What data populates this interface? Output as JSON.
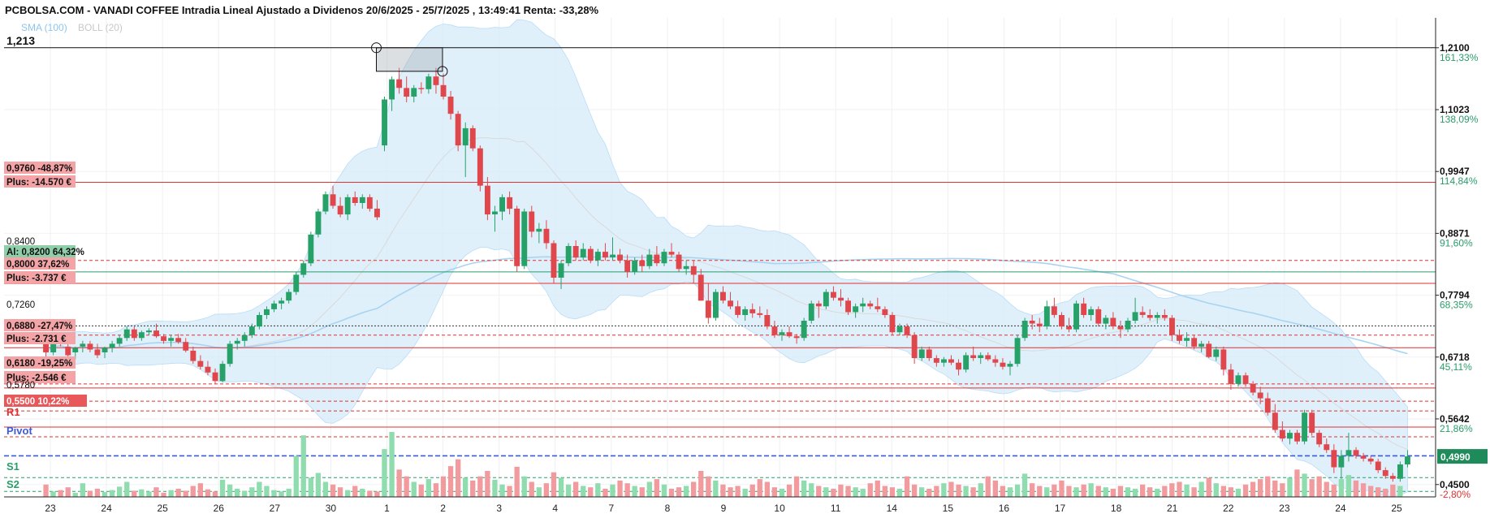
{
  "header": {
    "title": "PCBOLSA.COM - VANADI COFFEE Intradia Lineal Ajustado a Dividenos 20/6/2025 - 25/7/2025 , 13:49:41 Renta: -33,28%",
    "indicator_sma": "SMA (100)",
    "indicator_boll": "BOLL (20)",
    "max_label": "1,213"
  },
  "colors": {
    "up": "#26a269",
    "down": "#e0474c",
    "band_fill": "#d6ebfa",
    "sma_line": "#a8d4f2",
    "pivot": "#3b5bdb",
    "green_axis": "#2a9d6a",
    "red_axis": "#e03131"
  },
  "chart_data": {
    "type": "candlestick",
    "title": "PCBOLSA.COM - VANADI COFFEE Intradia Lineal Ajustado a Dividenos 20/6/2025 - 25/7/2025 , 13:49:41 Renta: -33,28%",
    "x_tick_labels": [
      "23",
      "24",
      "25",
      "26",
      "27",
      "30",
      "1",
      "2",
      "3",
      "4",
      "7",
      "8",
      "9",
      "10",
      "11",
      "14",
      "15",
      "16",
      "17",
      "18",
      "21",
      "22",
      "23",
      "24",
      "25"
    ],
    "ylim": [
      0.4285,
      1.262
    ],
    "right_axis": [
      {
        "price": "1,2100",
        "pct": "161,33%"
      },
      {
        "price": "1,1023",
        "pct": "138,09%"
      },
      {
        "price": "0,9947",
        "pct": "114,84%"
      },
      {
        "price": "0,8871",
        "pct": "91,60%"
      },
      {
        "price": "0,7794",
        "pct": "68,35%"
      },
      {
        "price": "0,6718",
        "pct": "45,11%"
      },
      {
        "price": "0,5642",
        "pct": "21,86%"
      },
      {
        "price": "0,4500",
        "pct": "-2,80%"
      }
    ],
    "last_price": "0,4990",
    "left_labels": [
      {
        "text": "0,9760  -48,87%",
        "style": "red-box"
      },
      {
        "text": "Plus: -14.570 €",
        "style": "red-box"
      },
      {
        "text": "0,8400",
        "style": "plain"
      },
      {
        "text": "Al: 0,8200  64,32%",
        "style": "green-box"
      },
      {
        "text": "0,8000  37,62%",
        "style": "red-box"
      },
      {
        "text": "Plus: -3.737 €",
        "style": "red-box"
      },
      {
        "text": "0,7260",
        "style": "plain"
      },
      {
        "text": "0,6880  -27,47%",
        "style": "red-box"
      },
      {
        "text": "Plus: -2.731 €",
        "style": "red-box"
      },
      {
        "text": "0,6180  -19,25%",
        "style": "red-box"
      },
      {
        "text": "Plus: -2.546 €",
        "style": "red-box"
      },
      {
        "text": "0,5780",
        "style": "plain"
      },
      {
        "text": "0,5500  10,22%",
        "style": "red-solid"
      },
      {
        "text": "R1",
        "style": "red-text"
      },
      {
        "text": "Pivot",
        "style": "blue-text"
      },
      {
        "text": "S1",
        "style": "green-text"
      },
      {
        "text": "S2",
        "style": "green-text"
      }
    ],
    "candles": [
      [
        0.695,
        0.7,
        0.66,
        0.68
      ],
      [
        0.68,
        0.705,
        0.675,
        0.7
      ],
      [
        0.7,
        0.71,
        0.69,
        0.695
      ],
      [
        0.69,
        0.7,
        0.67,
        0.675
      ],
      [
        0.68,
        0.69,
        0.668,
        0.688
      ],
      [
        0.69,
        0.7,
        0.68,
        0.695
      ],
      [
        0.695,
        0.7,
        0.68,
        0.685
      ],
      [
        0.685,
        0.695,
        0.67,
        0.675
      ],
      [
        0.68,
        0.69,
        0.67,
        0.688
      ],
      [
        0.688,
        0.7,
        0.68,
        0.695
      ],
      [
        0.695,
        0.71,
        0.69,
        0.705
      ],
      [
        0.705,
        0.725,
        0.7,
        0.72
      ],
      [
        0.72,
        0.725,
        0.7,
        0.705
      ],
      [
        0.705,
        0.718,
        0.7,
        0.715
      ],
      [
        0.715,
        0.722,
        0.71,
        0.718
      ],
      [
        0.718,
        0.73,
        0.705,
        0.708
      ],
      [
        0.708,
        0.712,
        0.695,
        0.7
      ],
      [
        0.7,
        0.71,
        0.69,
        0.705
      ],
      [
        0.705,
        0.712,
        0.695,
        0.698
      ],
      [
        0.698,
        0.705,
        0.68,
        0.683
      ],
      [
        0.683,
        0.69,
        0.66,
        0.665
      ],
      [
        0.665,
        0.675,
        0.65,
        0.655
      ],
      [
        0.655,
        0.665,
        0.64,
        0.645
      ],
      [
        0.645,
        0.652,
        0.625,
        0.63
      ],
      [
        0.63,
        0.665,
        0.628,
        0.66
      ],
      [
        0.66,
        0.7,
        0.655,
        0.695
      ],
      [
        0.695,
        0.705,
        0.685,
        0.7
      ],
      [
        0.7,
        0.715,
        0.69,
        0.71
      ],
      [
        0.71,
        0.73,
        0.705,
        0.725
      ],
      [
        0.725,
        0.75,
        0.72,
        0.745
      ],
      [
        0.745,
        0.76,
        0.738,
        0.755
      ],
      [
        0.755,
        0.77,
        0.75,
        0.765
      ],
      [
        0.765,
        0.775,
        0.755,
        0.77
      ],
      [
        0.77,
        0.79,
        0.765,
        0.785
      ],
      [
        0.785,
        0.82,
        0.78,
        0.815
      ],
      [
        0.815,
        0.84,
        0.81,
        0.835
      ],
      [
        0.835,
        0.89,
        0.83,
        0.885
      ],
      [
        0.885,
        0.93,
        0.88,
        0.925
      ],
      [
        0.925,
        0.96,
        0.92,
        0.955
      ],
      [
        0.955,
        0.97,
        0.93,
        0.935
      ],
      [
        0.935,
        0.95,
        0.915,
        0.92
      ],
      [
        0.92,
        0.955,
        0.91,
        0.95
      ],
      [
        0.95,
        0.96,
        0.935,
        0.94
      ],
      [
        0.94,
        0.955,
        0.93,
        0.95
      ],
      [
        0.95,
        0.955,
        0.925,
        0.93
      ],
      [
        0.93,
        0.945,
        0.91,
        0.915
      ],
      [
        1.04,
        1.125,
        1.03,
        1.12
      ],
      [
        1.12,
        1.16,
        1.1,
        1.155
      ],
      [
        1.155,
        1.175,
        1.13,
        1.14
      ],
      [
        1.14,
        1.16,
        1.115,
        1.125
      ],
      [
        1.125,
        1.145,
        1.115,
        1.14
      ],
      [
        1.14,
        1.15,
        1.13,
        1.138
      ],
      [
        1.138,
        1.165,
        1.13,
        1.16
      ],
      [
        1.16,
        1.175,
        1.13,
        1.145
      ],
      [
        1.145,
        1.165,
        1.12,
        1.125
      ],
      [
        1.125,
        1.135,
        1.085,
        1.095
      ],
      [
        1.095,
        1.1,
        1.03,
        1.04
      ],
      [
        1.04,
        1.08,
        0.985,
        1.07
      ],
      [
        1.07,
        1.075,
        1.03,
        1.035
      ],
      [
        1.035,
        1.04,
        0.96,
        0.97
      ],
      [
        0.97,
        0.985,
        0.91,
        0.92
      ],
      [
        0.92,
        0.935,
        0.89,
        0.925
      ],
      [
        0.925,
        0.955,
        0.91,
        0.95
      ],
      [
        0.95,
        0.96,
        0.92,
        0.93
      ],
      [
        0.93,
        0.935,
        0.82,
        0.83
      ],
      [
        0.83,
        0.93,
        0.825,
        0.925
      ],
      [
        0.925,
        0.935,
        0.88,
        0.89
      ],
      [
        0.89,
        0.905,
        0.87,
        0.895
      ],
      [
        0.895,
        0.91,
        0.86,
        0.87
      ],
      [
        0.87,
        0.875,
        0.8,
        0.81
      ],
      [
        0.81,
        0.84,
        0.79,
        0.835
      ],
      [
        0.835,
        0.87,
        0.83,
        0.865
      ],
      [
        0.865,
        0.875,
        0.84,
        0.845
      ],
      [
        0.845,
        0.87,
        0.84,
        0.86
      ],
      [
        0.86,
        0.865,
        0.835,
        0.84
      ],
      [
        0.84,
        0.86,
        0.83,
        0.855
      ],
      [
        0.855,
        0.87,
        0.84,
        0.845
      ],
      [
        0.845,
        0.88,
        0.84,
        0.85
      ],
      [
        0.85,
        0.86,
        0.835,
        0.84
      ],
      [
        0.84,
        0.85,
        0.81,
        0.82
      ],
      [
        0.82,
        0.845,
        0.815,
        0.84
      ],
      [
        0.84,
        0.85,
        0.82,
        0.83
      ],
      [
        0.83,
        0.86,
        0.825,
        0.85
      ],
      [
        0.85,
        0.865,
        0.83,
        0.835
      ],
      [
        0.835,
        0.86,
        0.83,
        0.855
      ],
      [
        0.855,
        0.87,
        0.845,
        0.85
      ],
      [
        0.85,
        0.855,
        0.82,
        0.825
      ],
      [
        0.825,
        0.84,
        0.815,
        0.83
      ],
      [
        0.83,
        0.84,
        0.8,
        0.815
      ],
      [
        0.815,
        0.825,
        0.77,
        0.77
      ],
      [
        0.77,
        0.8,
        0.73,
        0.74
      ],
      [
        0.74,
        0.79,
        0.735,
        0.785
      ],
      [
        0.785,
        0.795,
        0.765,
        0.77
      ],
      [
        0.77,
        0.785,
        0.755,
        0.76
      ],
      [
        0.76,
        0.77,
        0.74,
        0.745
      ],
      [
        0.745,
        0.76,
        0.735,
        0.755
      ],
      [
        0.755,
        0.765,
        0.74,
        0.748
      ],
      [
        0.748,
        0.76,
        0.74,
        0.745
      ],
      [
        0.745,
        0.755,
        0.72,
        0.725
      ],
      [
        0.725,
        0.735,
        0.705,
        0.71
      ],
      [
        0.71,
        0.72,
        0.7,
        0.715
      ],
      [
        0.715,
        0.725,
        0.705,
        0.708
      ],
      [
        0.708,
        0.712,
        0.695,
        0.705
      ],
      [
        0.705,
        0.74,
        0.7,
        0.735
      ],
      [
        0.735,
        0.77,
        0.73,
        0.765
      ],
      [
        0.765,
        0.77,
        0.74,
        0.76
      ],
      [
        0.76,
        0.79,
        0.755,
        0.785
      ],
      [
        0.785,
        0.795,
        0.77,
        0.775
      ],
      [
        0.775,
        0.79,
        0.76,
        0.77
      ],
      [
        0.77,
        0.775,
        0.745,
        0.75
      ],
      [
        0.75,
        0.765,
        0.74,
        0.76
      ],
      [
        0.76,
        0.775,
        0.75,
        0.765
      ],
      [
        0.765,
        0.77,
        0.755,
        0.76
      ],
      [
        0.76,
        0.775,
        0.75,
        0.755
      ],
      [
        0.755,
        0.76,
        0.74,
        0.745
      ],
      [
        0.745,
        0.75,
        0.71,
        0.715
      ],
      [
        0.715,
        0.73,
        0.71,
        0.725
      ],
      [
        0.725,
        0.73,
        0.705,
        0.71
      ],
      [
        0.71,
        0.715,
        0.66,
        0.67
      ],
      [
        0.67,
        0.69,
        0.665,
        0.685
      ],
      [
        0.685,
        0.69,
        0.665,
        0.67
      ],
      [
        0.67,
        0.675,
        0.655,
        0.662
      ],
      [
        0.662,
        0.672,
        0.655,
        0.668
      ],
      [
        0.668,
        0.675,
        0.658,
        0.662
      ],
      [
        0.662,
        0.668,
        0.64,
        0.65
      ],
      [
        0.65,
        0.68,
        0.645,
        0.675
      ],
      [
        0.675,
        0.69,
        0.665,
        0.67
      ],
      [
        0.67,
        0.68,
        0.66,
        0.675
      ],
      [
        0.675,
        0.68,
        0.665,
        0.668
      ],
      [
        0.668,
        0.675,
        0.655,
        0.662
      ],
      [
        0.662,
        0.67,
        0.65,
        0.655
      ],
      [
        0.655,
        0.665,
        0.64,
        0.66
      ],
      [
        0.66,
        0.71,
        0.655,
        0.705
      ],
      [
        0.705,
        0.74,
        0.7,
        0.735
      ],
      [
        0.735,
        0.745,
        0.72,
        0.73
      ],
      [
        0.73,
        0.74,
        0.715,
        0.725
      ],
      [
        0.725,
        0.77,
        0.72,
        0.76
      ],
      [
        0.76,
        0.775,
        0.74,
        0.745
      ],
      [
        0.745,
        0.75,
        0.72,
        0.725
      ],
      [
        0.725,
        0.74,
        0.715,
        0.72
      ],
      [
        0.72,
        0.77,
        0.715,
        0.765
      ],
      [
        0.765,
        0.775,
        0.74,
        0.745
      ],
      [
        0.745,
        0.76,
        0.735,
        0.755
      ],
      [
        0.755,
        0.76,
        0.725,
        0.73
      ],
      [
        0.73,
        0.745,
        0.72,
        0.74
      ],
      [
        0.74,
        0.75,
        0.72,
        0.725
      ],
      [
        0.725,
        0.735,
        0.705,
        0.72
      ],
      [
        0.72,
        0.74,
        0.715,
        0.735
      ],
      [
        0.735,
        0.775,
        0.73,
        0.75
      ],
      [
        0.75,
        0.76,
        0.74,
        0.745
      ],
      [
        0.745,
        0.755,
        0.735,
        0.74
      ],
      [
        0.74,
        0.75,
        0.73,
        0.745
      ],
      [
        0.745,
        0.755,
        0.735,
        0.74
      ],
      [
        0.74,
        0.745,
        0.7,
        0.71
      ],
      [
        0.71,
        0.72,
        0.695,
        0.7
      ],
      [
        0.7,
        0.715,
        0.69,
        0.705
      ],
      [
        0.705,
        0.71,
        0.685,
        0.69
      ],
      [
        0.69,
        0.7,
        0.68,
        0.695
      ],
      [
        0.695,
        0.7,
        0.67,
        0.672
      ],
      [
        0.672,
        0.69,
        0.665,
        0.685
      ],
      [
        0.685,
        0.69,
        0.64,
        0.65
      ],
      [
        0.65,
        0.66,
        0.615,
        0.625
      ],
      [
        0.625,
        0.645,
        0.62,
        0.64
      ],
      [
        0.64,
        0.645,
        0.62,
        0.625
      ],
      [
        0.625,
        0.63,
        0.605,
        0.61
      ],
      [
        0.61,
        0.62,
        0.59,
        0.6
      ],
      [
        0.6,
        0.61,
        0.57,
        0.575
      ],
      [
        0.575,
        0.59,
        0.54,
        0.545
      ],
      [
        0.545,
        0.56,
        0.525,
        0.53
      ],
      [
        0.53,
        0.545,
        0.52,
        0.54
      ],
      [
        0.54,
        0.545,
        0.52,
        0.525
      ],
      [
        0.525,
        0.58,
        0.52,
        0.575
      ],
      [
        0.575,
        0.58,
        0.535,
        0.54
      ],
      [
        0.54,
        0.545,
        0.515,
        0.52
      ],
      [
        0.52,
        0.53,
        0.505,
        0.51
      ],
      [
        0.51,
        0.52,
        0.47,
        0.48
      ],
      [
        0.48,
        0.51,
        0.46,
        0.5
      ],
      [
        0.5,
        0.54,
        0.49,
        0.51
      ],
      [
        0.51,
        0.515,
        0.495,
        0.5
      ],
      [
        0.5,
        0.505,
        0.49,
        0.495
      ],
      [
        0.495,
        0.5,
        0.485,
        0.49
      ],
      [
        0.49,
        0.495,
        0.47,
        0.475
      ],
      [
        0.475,
        0.48,
        0.46,
        0.465
      ],
      [
        0.465,
        0.47,
        0.455,
        0.46
      ],
      [
        0.46,
        0.49,
        0.455,
        0.485
      ],
      [
        0.485,
        0.51,
        0.48,
        0.499
      ]
    ],
    "volume": [
      18,
      8,
      10,
      14,
      6,
      20,
      9,
      12,
      7,
      10,
      15,
      22,
      9,
      11,
      8,
      14,
      6,
      10,
      12,
      9,
      16,
      20,
      11,
      8,
      25,
      18,
      12,
      9,
      14,
      22,
      16,
      10,
      8,
      12,
      60,
      90,
      28,
      35,
      22,
      18,
      14,
      10,
      16,
      12,
      9,
      8,
      70,
      95,
      40,
      30,
      22,
      18,
      26,
      20,
      30,
      45,
      55,
      28,
      24,
      30,
      38,
      25,
      18,
      16,
      44,
      30,
      22,
      14,
      20,
      36,
      28,
      18,
      22,
      16,
      14,
      20,
      12,
      18,
      24,
      20,
      16,
      14,
      22,
      26,
      18,
      12,
      14,
      16,
      22,
      38,
      30,
      24,
      18,
      14,
      16,
      12,
      18,
      26,
      22,
      14,
      12,
      18,
      30,
      24,
      20,
      16,
      14,
      12,
      18,
      16,
      14,
      12,
      20,
      24,
      16,
      14,
      12,
      30,
      18,
      14,
      12,
      16,
      20,
      22,
      18,
      16,
      14,
      20,
      30,
      24,
      16,
      14,
      18,
      34,
      20,
      16,
      14,
      18,
      24,
      16,
      14,
      18,
      20,
      16,
      14,
      12,
      16,
      14,
      12,
      18,
      14,
      12,
      16,
      20,
      22,
      18,
      14,
      22,
      28,
      20,
      16,
      14,
      12,
      18,
      22,
      26,
      30,
      24,
      20,
      28,
      40,
      34,
      26,
      30,
      22,
      18,
      26,
      32,
      24,
      20,
      16,
      14,
      12,
      18,
      16
    ],
    "volume_colors_up": true,
    "bands": {
      "note": "Bollinger (20) envelope"
    },
    "sma100": "SMA (100)"
  }
}
